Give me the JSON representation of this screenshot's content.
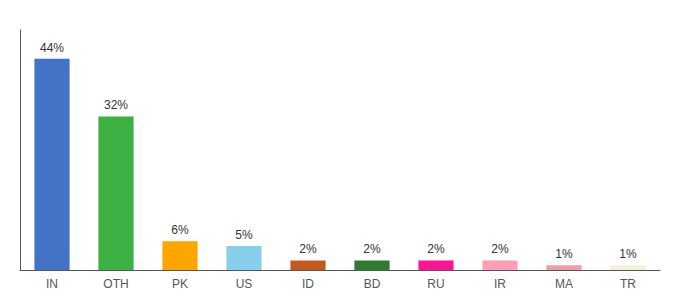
{
  "chart_data": {
    "type": "bar",
    "categories": [
      "IN",
      "OTH",
      "PK",
      "US",
      "ID",
      "BD",
      "RU",
      "IR",
      "MA",
      "TR"
    ],
    "values": [
      44,
      32,
      6,
      5,
      2,
      2,
      2,
      2,
      1,
      1
    ],
    "value_labels": [
      "44%",
      "32%",
      "6%",
      "5%",
      "2%",
      "2%",
      "2%",
      "2%",
      "1%",
      "1%"
    ],
    "colors": [
      "#4472C4",
      "#3CB043",
      "#FFA500",
      "#87CEEB",
      "#C05A1F",
      "#2E7D2E",
      "#FF1493",
      "#FF9EB5",
      "#E8A0A0",
      "#F5F0D8"
    ],
    "ylim": [
      0,
      50
    ],
    "grid": false,
    "data_labels": true,
    "tick_labels": "x"
  }
}
